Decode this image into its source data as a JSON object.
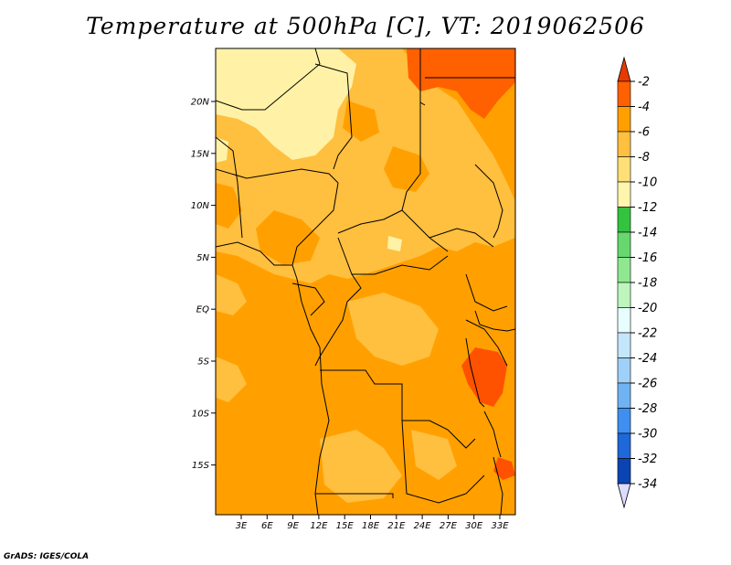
{
  "title": "Temperature at 500hPa [C], VT: 2019062506",
  "credit": "GrADS: IGES/COLA",
  "map": {
    "lat_ticks": [
      "20N",
      "15N",
      "10N",
      "5N",
      "EQ",
      "5S",
      "10S",
      "15S"
    ],
    "lon_ticks": [
      "3E",
      "6E",
      "9E",
      "12E",
      "15E",
      "18E",
      "21E",
      "24E",
      "27E",
      "30E",
      "33E"
    ]
  },
  "colorbar": {
    "labels": [
      "-2",
      "-4",
      "-6",
      "-8",
      "-10",
      "-12",
      "-14",
      "-16",
      "-18",
      "-20",
      "-22",
      "-24",
      "-26",
      "-28",
      "-30",
      "-32",
      "-34"
    ],
    "top_color": "#e83a00",
    "colors": [
      "#ff6000",
      "#ffa000",
      "#ffbf3f",
      "#ffdf78",
      "#fff5ad",
      "#33c33f",
      "#66d86e",
      "#8fe88f",
      "#bdf5bd",
      "#e8fdfd",
      "#c4e6fb",
      "#9fd0f8",
      "#6fb3f3",
      "#3f8ff0",
      "#1e68d9",
      "#0a44b3"
    ],
    "bottom_color": "#0a1070",
    "end_color": "#dcdcff"
  },
  "palette": {
    "t_m10_m8": "#fff2a6",
    "t_m8_m6": "#ffbf3f",
    "t_m6_m4": "#ffa000",
    "t_m4_m2": "#ff6000",
    "t_warm": "#ff5200",
    "border": "#000000"
  }
}
